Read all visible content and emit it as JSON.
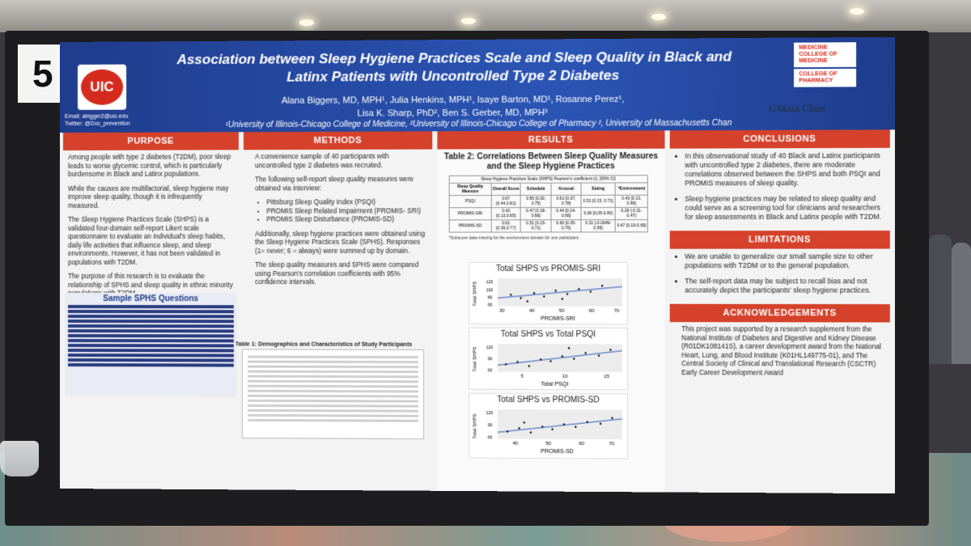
{
  "scene": {
    "booth_number": "5",
    "colors": {
      "header_blue": "#2b55b5",
      "section_red": "#d5412b",
      "uic_red": "#d52b1e"
    }
  },
  "poster": {
    "title": "Association between Sleep Hygiene Practices Scale and Sleep Quality in Black and Latinx Patients with Uncontrolled Type 2 Diabetes",
    "authors_line1": "Alana Biggers, MD, MPH¹, Julia Henkins, MPH¹, Isaye Barton, MD¹, Rosanne Perez¹,",
    "authors_line2": "Lisa K. Sharp, PhD², Ben S. Gerber, MD, MPH³",
    "affiliations": "¹University of Illinois-Chicago College of Medicine, ²University of Illinois-Chicago College of Pharmacy ², University of Massachusetts Chan",
    "logo_left": "UIC",
    "contact_email": "Email: abigger2@uic.edu",
    "contact_twitter": "Twitter: @Doc_prevention",
    "logo_medicine": "MEDICINE COLLEGE OF MEDICINE",
    "logo_pharmacy": "COLLEGE OF PHARMACY",
    "logo_umass": "UMass Chan",
    "purpose": {
      "heading": "PURPOSE",
      "p1": "Among people with type 2 diabetes (T2DM), poor sleep leads to worse glycemic control, which is particularly burdensome in Black and Latinx populations.",
      "p2": "While the causes are multifactorial, sleep hygiene may improve sleep quality, though it is infrequently measured.",
      "p3": "The Sleep Hygiene Practices Scale (SHPS) is a validated four-domain self-report Likert scale questionnaire to evaluate an individual's sleep habits, daily life activities that influence sleep, and sleep environments. However, it has not been validated in populations with T2DM.",
      "p4": "The purpose of this research is to evaluate the relationship of SPHS and sleep quality in ethnic minority populations with T2DM.",
      "sample_heading": "Sample SPHS Questions"
    },
    "methods": {
      "heading": "METHODS",
      "p1": "A convenience sample of 40 participants with uncontrolled type 2 diabetes was recruited.",
      "p2": "The following self-report sleep quality measures were obtained via interview:",
      "bullets": [
        "Pittsburg Sleep Quality Index (PSQI)",
        "PROMIS Sleep Related Impairment (PROMIS- SRI)",
        "PROMIS Sleep Disturbance (PROMIS-SD)"
      ],
      "p3": "Additionally, sleep hygiene practices were obtained using the Sleep Hygiene Practices Scale (SPHS). Responses (1= never; 6 = always) were summed up by domain.",
      "p4": "The sleep quality measures and SPHS were compared using Pearson's correlation coefficients with 95% confidence intervals.",
      "table1_title": "Table 1: Demographics and Characteristics of Study Participants"
    },
    "results": {
      "heading": "RESULTS",
      "table2_title": "Table 2: Correlations Between Sleep Quality Measures and the Sleep Hygiene Practices",
      "table2_caption": "Sleep Hygiene Practices Scale (SHPS) Pearson's coefficient (r), [95% CI]",
      "table2_header": [
        "Sleep Quality Measure",
        "Overall Score",
        "Schedule",
        "Arousal",
        "Eating",
        "*Environment"
      ],
      "table2_rows": [
        [
          "PSQI",
          "0.67 [0.44,0.81]",
          "0.56 [0.30, 0.75]",
          "0.61 [0.37, 0.78]",
          "0.51 [0.23, 0.71]",
          "0.43 [0.13, 0.66]"
        ],
        [
          "PROMIS-SRI",
          "0.43 [0.13,0.65]",
          "0.47 [0.18-0.68]",
          "0.44 [0.14-0.66]",
          "0.36 [0.05-0.60]",
          "0.28 [-0.11-0.47]"
        ],
        [
          "PROMIS-SD",
          "0.61 [0.36,0.77]",
          "0.51 [0.23-0.71]",
          "0.60 [0.35-0.76]",
          "0.31 [-0.0049-0.56]",
          "0.47 [0.19-0.69]"
        ]
      ],
      "table2_note": "*Subscore data missing for the environment domain for one participant.",
      "plots": [
        {
          "title": "Total SHPS vs PROMIS-SRI",
          "xlabel": "PROMIS-SRI",
          "ylabel": "Total SHPS",
          "xticks": [
            "30",
            "40",
            "50",
            "60",
            "70"
          ],
          "yticks": [
            "120",
            "100",
            "80",
            "60"
          ]
        },
        {
          "title": "Total SHPS vs Total PSQI",
          "xlabel": "Total PSQI",
          "ylabel": "Total SHPS",
          "xticks": [
            "5",
            "10",
            "15"
          ],
          "yticks": [
            "120",
            "90",
            "60"
          ]
        },
        {
          "title": "Total SHPS vs PROMIS-SD",
          "xlabel": "PROMIS-SD",
          "ylabel": "Total SHPS",
          "xticks": [
            "40",
            "50",
            "60",
            "70"
          ],
          "yticks": [
            "120",
            "90",
            "60"
          ]
        }
      ]
    },
    "conclusions": {
      "heading": "CONCLUSIONS",
      "b1": "In this observational study of 40 Black and Latinx participants with uncontrolled type 2 diabetes, there are moderate correlations observed between the SHPS and both PSQI and PROMIS measures of sleep quality.",
      "b2": "Sleep hygiene practices may be related to sleep quality and could serve as a screening tool for clinicians and researchers for sleep assessments in Black and Latinx people with T2DM."
    },
    "limitations": {
      "heading": "LIMITATIONS",
      "b1": "We are unable to generalize our small sample size to other populations with T2DM or to the general population.",
      "b2": "The self-report data may be subject to recall bias and not accurately depict the participants' sleep hygiene practices."
    },
    "acknowledgements": {
      "heading": "ACKNOWLEDGEMENTS",
      "text": "This project was supported by a research supplement from the National Institute of Diabetes and Digestive and Kidney Disease (R01DK108141S), a career development award from the National Heart, Lung, and Blood Institute (K01HL149775-01), and The Central Society of Clinical and Translational Research (CSCTR) Early Career Development Award"
    }
  }
}
